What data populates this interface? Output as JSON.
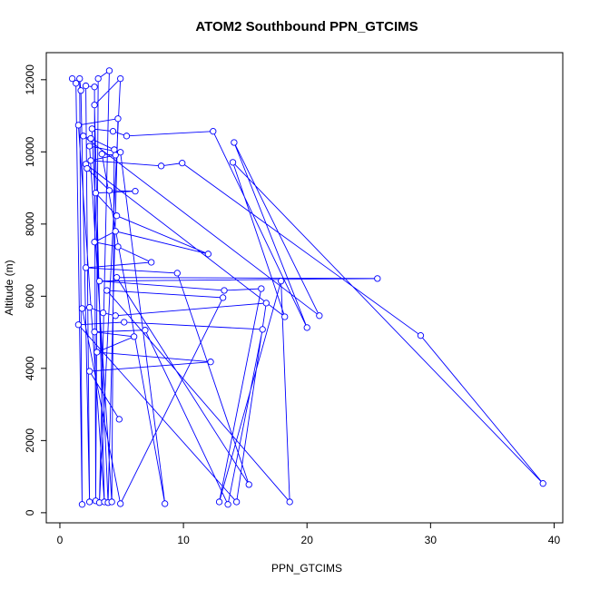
{
  "chart_data": {
    "type": "scatter_line",
    "title": "ATOM2 Southbound PPN_GTCIMS",
    "x_label": "PPN_GTCIMS",
    "y_label": "Altitude (m)",
    "color": "#0000ff",
    "xlim": [
      -1.1,
      40.7
    ],
    "ylim": [
      -280,
      12750
    ],
    "xticks": [
      0,
      10,
      20,
      30,
      40
    ],
    "yticks": [
      0,
      2000,
      4000,
      6000,
      8000,
      10000,
      12000
    ],
    "x": [
      1.0,
      1.3,
      1.8,
      1.6,
      1.7,
      2.4,
      2.1,
      2.8,
      2.9,
      3.1,
      4.0,
      3.2,
      4.9,
      2.8,
      3.6,
      1.5,
      4.7,
      3.9,
      2.6,
      4.3,
      5.4,
      12.4,
      20.0,
      14.1,
      21.0,
      1.9,
      2.5,
      4.4,
      4.2,
      2.4,
      4.9,
      8.5,
      3.4,
      4.5,
      2.5,
      8.2,
      9.9,
      29.2,
      39.1,
      14.0,
      18.2,
      2.1,
      2.2,
      4.0,
      6.1,
      2.9,
      4.6,
      12.0,
      4.5,
      2.8,
      4.7,
      7.4,
      2.1,
      9.5,
      15.3,
      4.6,
      25.7,
      3.2,
      13.3,
      16.3,
      12.9,
      17.9,
      18.6,
      3.8,
      13.2,
      4.9,
      1.8,
      2.4,
      3.5,
      4.5,
      16.7,
      14.3,
      1.5,
      5.2,
      16.4,
      13.6,
      6.9,
      2.8,
      6.0,
      3.0,
      12.2,
      2.4,
      4.8
    ],
    "values": [
      12030,
      11900,
      230,
      12030,
      11700,
      300,
      11830,
      11800,
      330,
      12030,
      12250,
      280,
      12030,
      11300,
      300,
      10740,
      10920,
      280,
      10640,
      10570,
      10440,
      10570,
      5130,
      10260,
      5460,
      10440,
      10370,
      10060,
      300,
      10160,
      9990,
      250,
      9940,
      9910,
      9760,
      9610,
      9690,
      4910,
      810,
      9710,
      5430,
      9660,
      9540,
      8930,
      8910,
      8860,
      8230,
      7170,
      7800,
      7500,
      7370,
      6940,
      6790,
      6640,
      780,
      6520,
      6490,
      6420,
      6160,
      6210,
      300,
      6420,
      300,
      6160,
      5960,
      250,
      5660,
      5690,
      5540,
      5460,
      5810,
      300,
      5210,
      5280,
      5080,
      230,
      5060,
      5010,
      4880,
      4450,
      4180,
      3920,
      2590
    ]
  }
}
